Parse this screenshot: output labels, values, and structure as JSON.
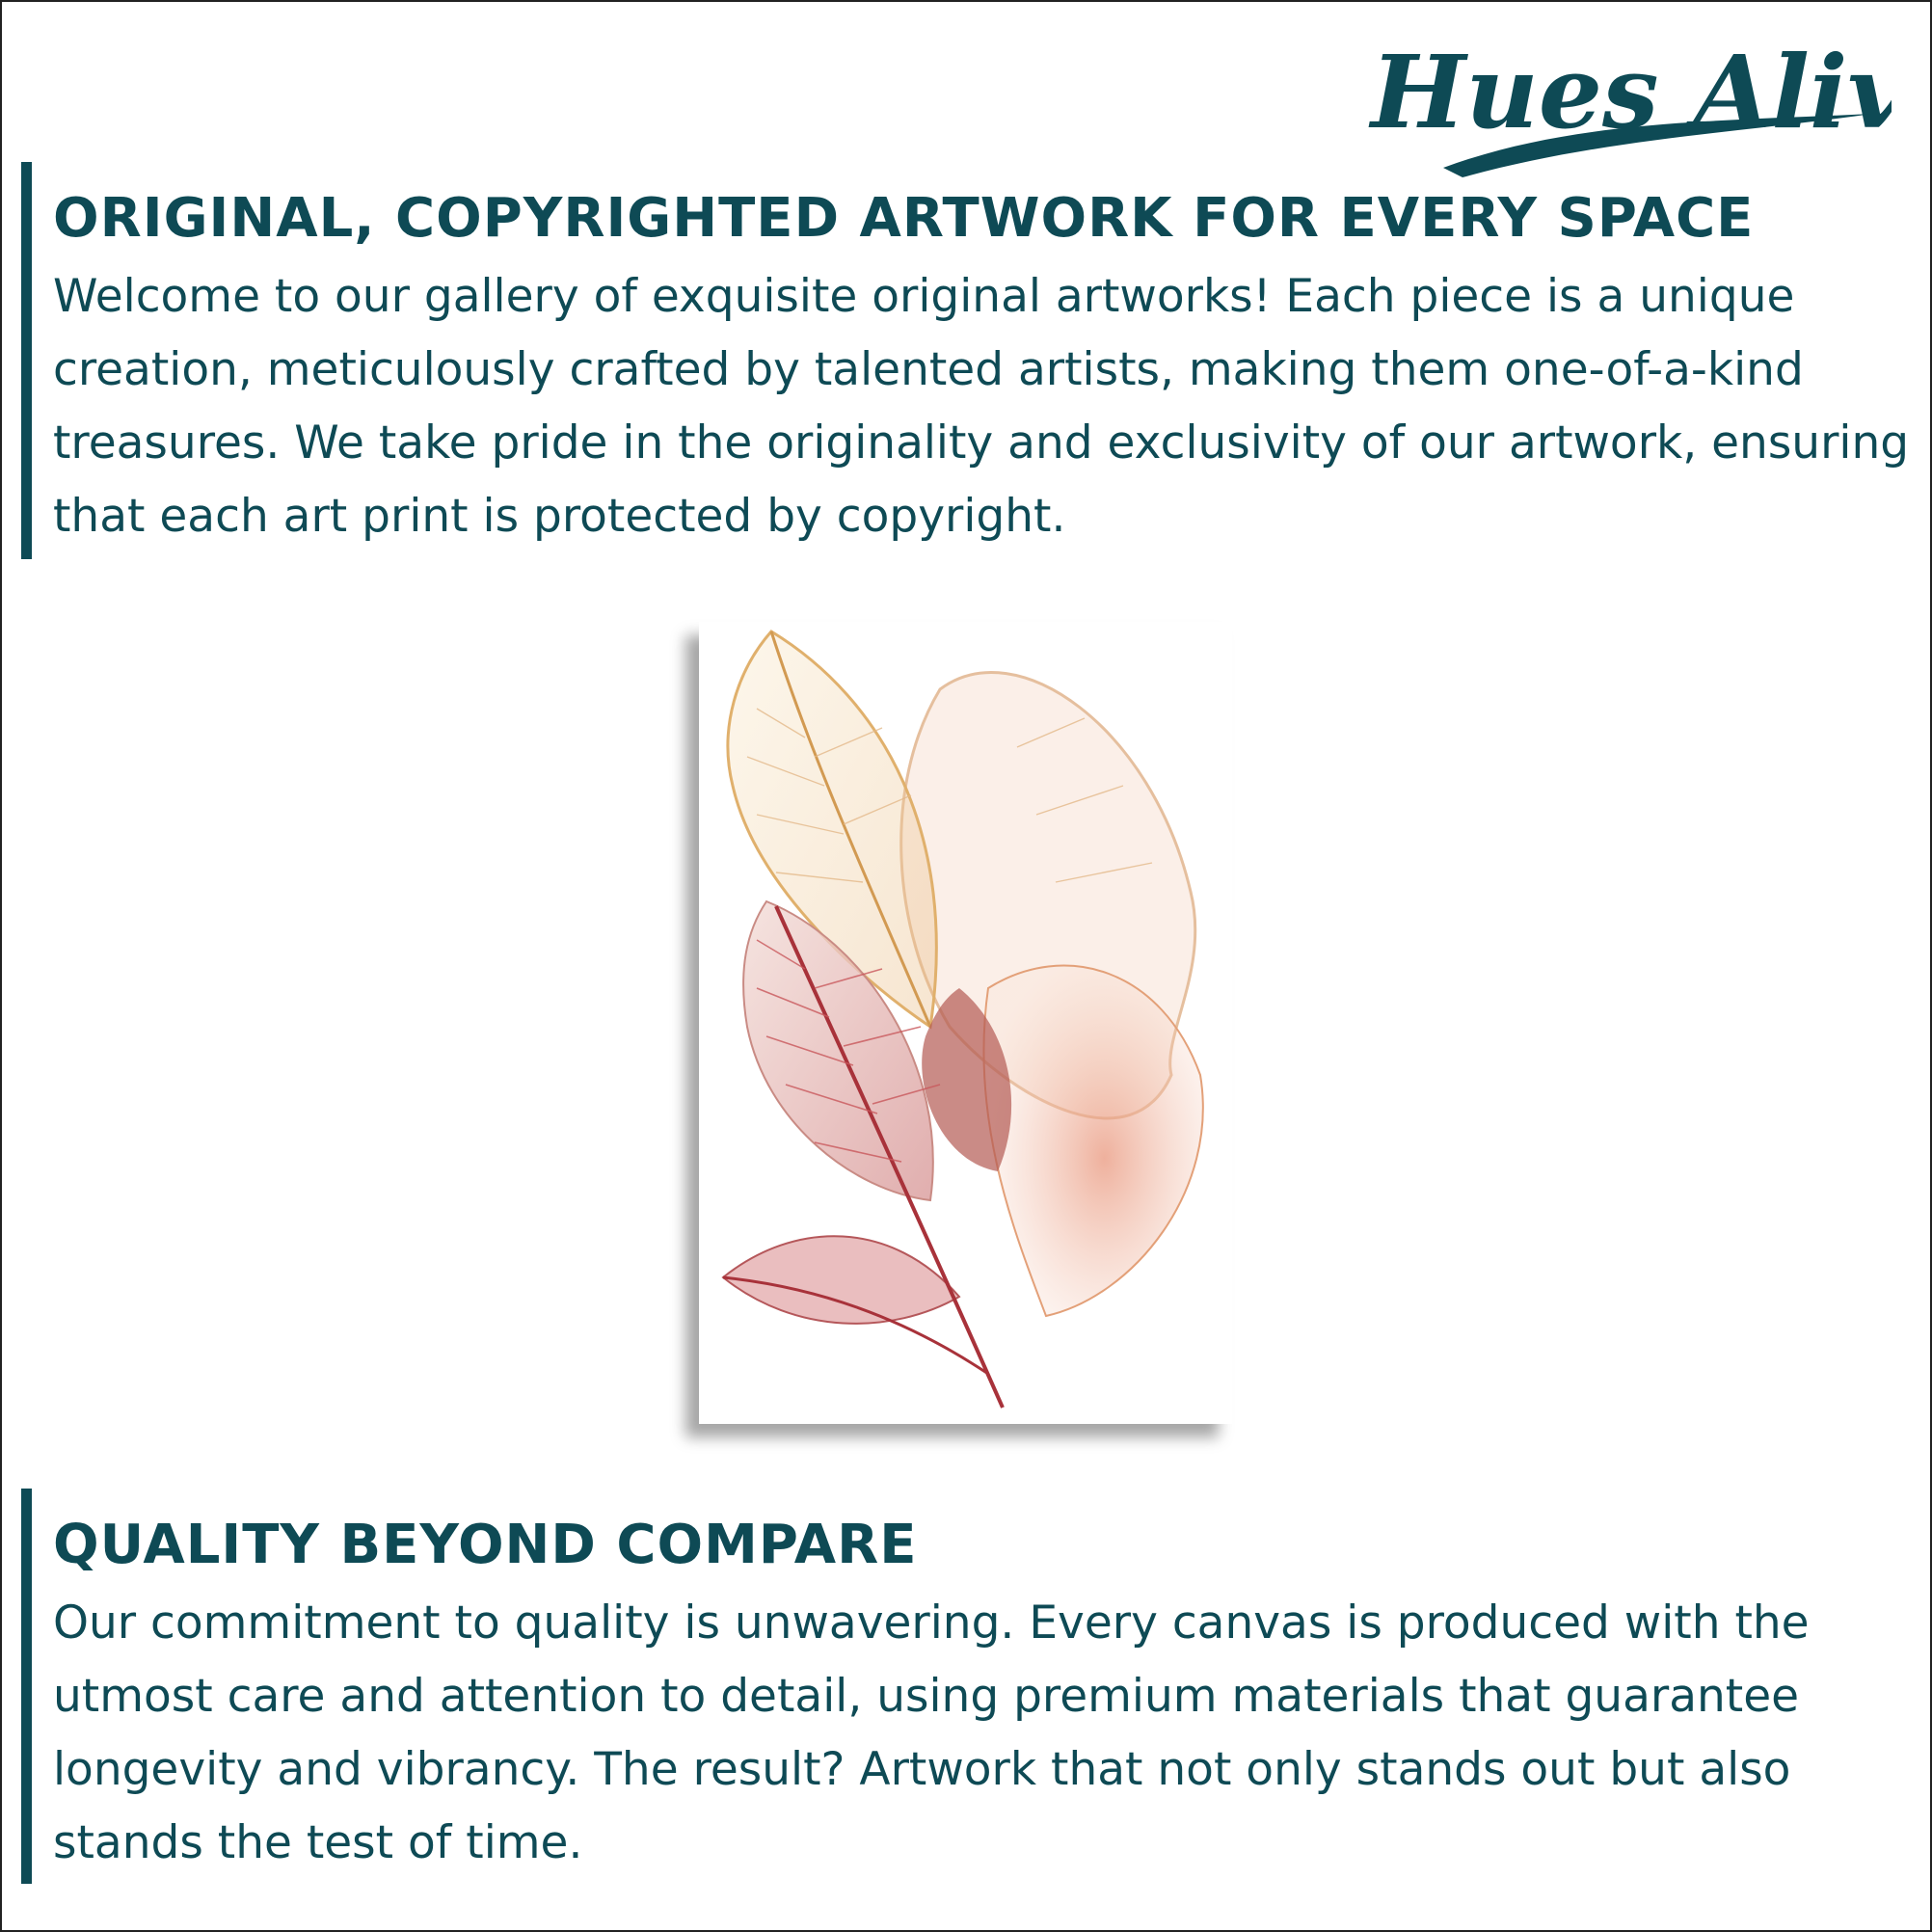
{
  "logo": {
    "text": "Hues Alive",
    "color": "#0e4a55"
  },
  "section1": {
    "heading": "ORIGINAL, COPYRIGHTED ARTWORK FOR EVERY SPACE",
    "body": "Welcome to our gallery of exquisite original artworks! Each piece is a unique creation, meticulously crafted by talented artists, making them one-of-a-kind treasures. We take pride in the originality and exclusivity of our artwork, ensuring that each art print is protected by copyright."
  },
  "artwork": {
    "icon": "leaf-artwork-icon"
  },
  "section2": {
    "heading": "QUALITY BEYOND COMPARE",
    "body": "Our commitment to quality is unwavering. Every canvas is produced with the utmost care and attention to detail, using premium materials that guarantee longevity and vibrancy. The result? Artwork that not only stands out but also stands the test of time."
  },
  "colors": {
    "accent": "#0e4a55",
    "background": "#ffffff"
  }
}
